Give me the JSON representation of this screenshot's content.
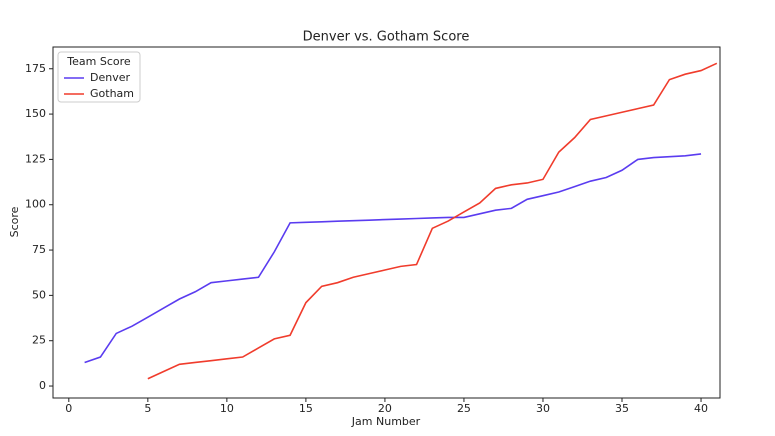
{
  "chart_data": {
    "type": "line",
    "title": "Denver vs. Gotham Score",
    "xlabel": "Jam Number",
    "ylabel": "Score",
    "legend_title": "Team Score",
    "legend": "upper left",
    "grid": false,
    "xlim": [
      -1,
      41.2
    ],
    "ylim": [
      -6.6,
      187
    ],
    "xticks": [
      0,
      5,
      10,
      15,
      20,
      25,
      30,
      35,
      40
    ],
    "yticks": [
      0,
      25,
      50,
      75,
      100,
      125,
      150,
      175
    ],
    "series": [
      {
        "name": "Denver",
        "color": "#5a3cf0",
        "x": [
          1,
          2,
          3,
          4,
          5,
          6,
          7,
          8,
          9,
          10,
          11,
          12,
          13,
          14,
          15,
          16,
          17,
          18,
          19,
          20,
          21,
          22,
          23,
          24,
          25,
          26,
          27,
          28,
          29,
          30,
          31,
          32,
          33,
          34,
          35,
          36,
          37,
          38,
          39,
          40
        ],
        "values": [
          13,
          16,
          29,
          33,
          38,
          43,
          48,
          52,
          57,
          58,
          59,
          60,
          74,
          90,
          90.3,
          90.6,
          90.9,
          91.2,
          91.5,
          91.8,
          92.1,
          92.4,
          92.7,
          93,
          93,
          95,
          97,
          98,
          103,
          105,
          107,
          110,
          113,
          115,
          119,
          125,
          126,
          126.5,
          127,
          128
        ]
      },
      {
        "name": "Gotham",
        "color": "#f03c2c",
        "x": [
          5,
          6,
          7,
          8,
          9,
          10,
          11,
          12,
          13,
          14,
          15,
          16,
          17,
          18,
          19,
          20,
          21,
          22,
          23,
          24,
          25,
          26,
          27,
          28,
          29,
          30,
          31,
          32,
          33,
          34,
          35,
          36,
          37,
          38,
          39,
          40,
          41
        ],
        "values": [
          4,
          8,
          12,
          13,
          14,
          15,
          16,
          21,
          26,
          28,
          46,
          55,
          57,
          60,
          62,
          64,
          66,
          67,
          87,
          91,
          96,
          101,
          109,
          111,
          112,
          114,
          129,
          137,
          147,
          149,
          151,
          153,
          155,
          169,
          172,
          174,
          178
        ]
      }
    ]
  }
}
